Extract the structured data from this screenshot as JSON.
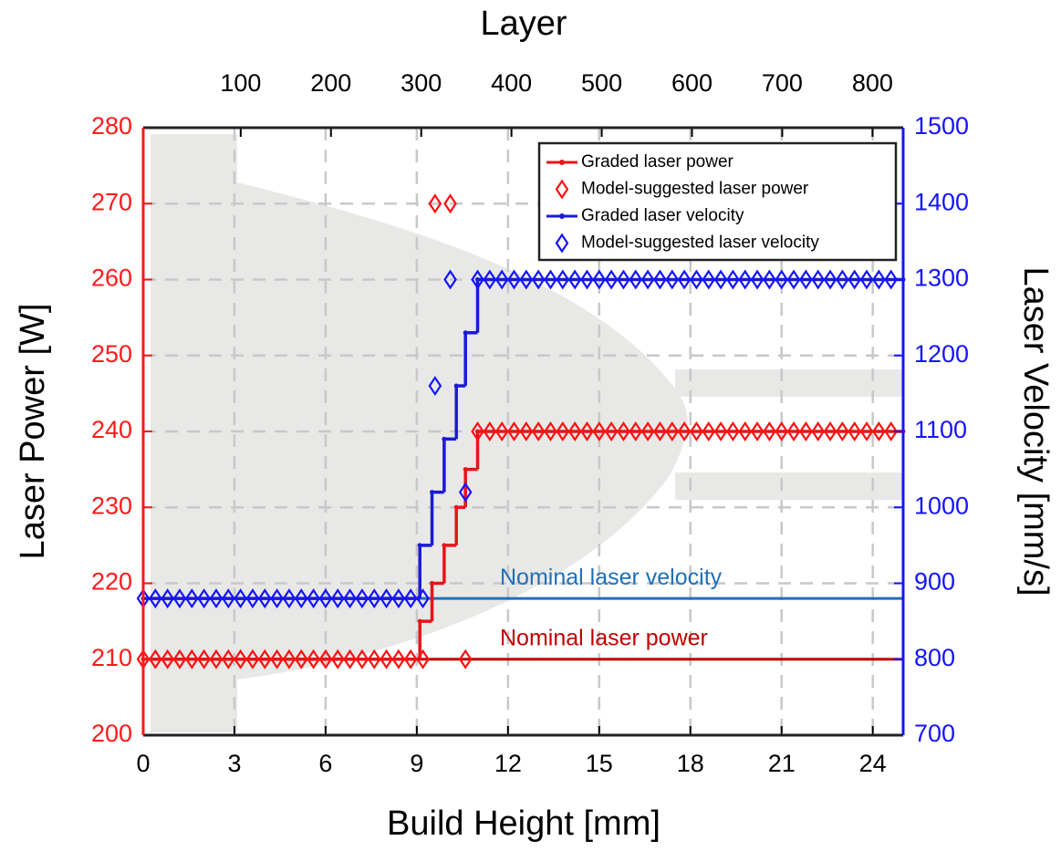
{
  "chart_data": {
    "type": "line",
    "x_title": "Build Height [mm]",
    "x2_title": "Layer",
    "y_title": "Laser Power [W]",
    "y2_title": "Laser Velocity [mm/s]",
    "xlim": [
      0,
      25
    ],
    "xticks": [
      0,
      3,
      6,
      9,
      12,
      15,
      18,
      21,
      24
    ],
    "x2lim": [
      -8,
      834
    ],
    "x2ticks": [
      100,
      200,
      300,
      400,
      500,
      600,
      700,
      800
    ],
    "ylim": [
      200,
      280
    ],
    "yticks": [
      200,
      210,
      220,
      230,
      240,
      250,
      260,
      270,
      280
    ],
    "y2lim": [
      700,
      1500
    ],
    "y2ticks": [
      700,
      800,
      900,
      1000,
      1100,
      1200,
      1300,
      1400,
      1500
    ],
    "y_color": "#ff1a1a",
    "y2_color": "#1414ff",
    "grid": true,
    "legend": "upper right",
    "series": [
      {
        "name": "Graded laser power",
        "style": "step",
        "color": "#e8141b",
        "x": [
          0,
          9.1,
          9.5,
          9.9,
          10.3,
          10.6,
          11,
          25
        ],
        "values": [
          210,
          215,
          220,
          225,
          230,
          235,
          240,
          240
        ]
      },
      {
        "name": "Model-suggested laser power",
        "style": "diamond",
        "color": "#ff1010",
        "x": [
          0,
          0.4,
          0.8,
          1.2,
          1.6,
          2,
          2.4,
          2.8,
          3.2,
          3.6,
          4,
          4.4,
          4.8,
          5.2,
          5.6,
          6,
          6.4,
          6.8,
          7.2,
          7.6,
          8,
          8.4,
          8.8,
          9.2,
          9.6,
          10.1,
          10.6,
          11,
          11.4,
          11.8,
          12.2,
          12.6,
          13,
          13.4,
          13.8,
          14.2,
          14.6,
          15,
          15.4,
          15.8,
          16.2,
          16.6,
          17,
          17.4,
          17.8,
          18.2,
          18.6,
          19,
          19.4,
          19.8,
          20.2,
          20.6,
          21,
          21.4,
          21.8,
          22.2,
          22.6,
          23,
          23.4,
          23.8,
          24.2,
          24.6
        ],
        "values": [
          210,
          210,
          210,
          210,
          210,
          210,
          210,
          210,
          210,
          210,
          210,
          210,
          210,
          210,
          210,
          210,
          210,
          210,
          210,
          210,
          210,
          210,
          210,
          210,
          270,
          270,
          210,
          240,
          240,
          240,
          240,
          240,
          240,
          240,
          240,
          240,
          240,
          240,
          240,
          240,
          240,
          240,
          240,
          240,
          240,
          240,
          240,
          240,
          240,
          240,
          240,
          240,
          240,
          240,
          240,
          240,
          240,
          240,
          240,
          240,
          240,
          240
        ]
      },
      {
        "name": "Graded laser velocity",
        "style": "step",
        "axis": "y2",
        "color": "#1a1ad6",
        "x": [
          0,
          9.1,
          9.5,
          9.9,
          10.3,
          10.6,
          11,
          25
        ],
        "values": [
          880,
          950,
          1020,
          1090,
          1160,
          1230,
          1300,
          1300
        ]
      },
      {
        "name": "Model-suggested laser velocity",
        "style": "diamond",
        "axis": "y2",
        "color": "#1414ff",
        "x": [
          0,
          0.4,
          0.8,
          1.2,
          1.6,
          2,
          2.4,
          2.8,
          3.2,
          3.6,
          4,
          4.4,
          4.8,
          5.2,
          5.6,
          6,
          6.4,
          6.8,
          7.2,
          7.6,
          8,
          8.4,
          8.8,
          9.2,
          9.6,
          10.1,
          10.6,
          11,
          11.4,
          11.8,
          12.2,
          12.6,
          13,
          13.4,
          13.8,
          14.2,
          14.6,
          15,
          15.4,
          15.8,
          16.2,
          16.6,
          17,
          17.4,
          17.8,
          18.2,
          18.6,
          19,
          19.4,
          19.8,
          20.2,
          20.6,
          21,
          21.4,
          21.8,
          22.2,
          22.6,
          23,
          23.4,
          23.8,
          24.2,
          24.6
        ],
        "values": [
          880,
          880,
          880,
          880,
          880,
          880,
          880,
          880,
          880,
          880,
          880,
          880,
          880,
          880,
          880,
          880,
          880,
          880,
          880,
          880,
          880,
          880,
          880,
          880,
          1160,
          1300,
          1020,
          1300,
          1300,
          1300,
          1300,
          1300,
          1300,
          1300,
          1300,
          1300,
          1300,
          1300,
          1300,
          1300,
          1300,
          1300,
          1300,
          1300,
          1300,
          1300,
          1300,
          1300,
          1300,
          1300,
          1300,
          1300,
          1300,
          1300,
          1300,
          1300,
          1300,
          1300,
          1300,
          1300,
          1300,
          1300
        ]
      }
    ],
    "reference_lines": [
      {
        "label": "Nominal laser velocity",
        "value": 880,
        "axis": "y2",
        "color": "#1f70b8"
      },
      {
        "label": "Nominal laser power",
        "value": 210,
        "axis": "y",
        "color": "#c00000"
      }
    ]
  }
}
